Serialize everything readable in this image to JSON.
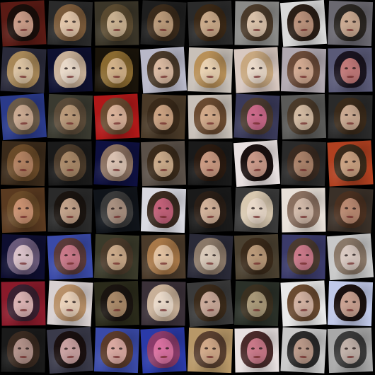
{
  "image": {
    "description_type": "grid of generated face samples",
    "rows": 8,
    "cols": 8,
    "background": "#000000",
    "tiles": [
      {
        "bg": "#5a1a14",
        "hair": "#1a0e0a",
        "skin": "#c79a86"
      },
      {
        "bg": "#2a2a2a",
        "hair": "#7a5a3a",
        "skin": "#e0c4a8"
      },
      {
        "bg": "#3a3528",
        "hair": "#5a4a30",
        "skin": "#c8b090"
      },
      {
        "bg": "#1e1e1e",
        "hair": "#3a2a1a",
        "skin": "#b89878"
      },
      {
        "bg": "#2a2a2a",
        "hair": "#3a2816",
        "skin": "#c8a888"
      },
      {
        "bg": "#8a8a88",
        "hair": "#4a3a2a",
        "skin": "#d8c0a8"
      },
      {
        "bg": "#d8d8d8",
        "hair": "#2a1e16",
        "skin": "#b8907a"
      },
      {
        "bg": "#6a6870",
        "hair": "#2a2622",
        "skin": "#c8a890"
      },
      {
        "bg": "#2a2a3a",
        "hair": "#a88858",
        "skin": "#d8c0a0"
      },
      {
        "bg": "#0e1030",
        "hair": "#c8b098",
        "skin": "#e8d8c8"
      },
      {
        "bg": "#1a140a",
        "hair": "#8a6a30",
        "skin": "#d0b088"
      },
      {
        "bg": "#b8b8c8",
        "hair": "#4a3a2a",
        "skin": "#d8b8a0"
      },
      {
        "bg": "#c8c0b8",
        "hair": "#b89058",
        "skin": "#e8d0b0"
      },
      {
        "bg": "#d8c8c0",
        "hair": "#c8a880",
        "skin": "#e8d8c8"
      },
      {
        "bg": "#b0a8b0",
        "hair": "#6a4a38",
        "skin": "#d0a890"
      },
      {
        "bg": "#5a5a78",
        "hair": "#1a1420",
        "skin": "#c07878"
      },
      {
        "bg": "#2a3a8a",
        "hair": "#6a5a48",
        "skin": "#c8a890"
      },
      {
        "bg": "#3a3a30",
        "hair": "#5a4a38",
        "skin": "#b89878"
      },
      {
        "bg": "#b01818",
        "hair": "#6a4a30",
        "skin": "#d8b098"
      },
      {
        "bg": "#4a3a28",
        "hair": "#3a2a1a",
        "skin": "#c8a080"
      },
      {
        "bg": "#c8c0b8",
        "hair": "#6a4a30",
        "skin": "#d0a888"
      },
      {
        "bg": "#3a3a5a",
        "hair": "#4a3a30",
        "skin": "#c86888"
      },
      {
        "bg": "#5a5a58",
        "hair": "#4a3a2a",
        "skin": "#d0b8a0"
      },
      {
        "bg": "#2a2a2a",
        "hair": "#3a2a1a",
        "skin": "#c8a890"
      },
      {
        "bg": "#3a2a1a",
        "hair": "#6a4a28",
        "skin": "#b08060"
      },
      {
        "bg": "#1a1a1a",
        "hair": "#4a3a2a",
        "skin": "#a88868"
      },
      {
        "bg": "#0e1040",
        "hair": "#8a7060",
        "skin": "#d8c0b0"
      },
      {
        "bg": "#5a5048",
        "hair": "#3a2a1a",
        "skin": "#c8a888"
      },
      {
        "bg": "#1a1a1a",
        "hair": "#2a1a10",
        "skin": "#c89880"
      },
      {
        "bg": "#e8e0e0",
        "hair": "#1a1010",
        "skin": "#c89888"
      },
      {
        "bg": "#2a2a2a",
        "hair": "#3a2a20",
        "skin": "#a88068"
      },
      {
        "bg": "#b04020",
        "hair": "#3a2a1a",
        "skin": "#c8a080"
      },
      {
        "bg": "#5a3a20",
        "hair": "#6a4a28",
        "skin": "#c89070"
      },
      {
        "bg": "#2a2a2a",
        "hair": "#1a1410",
        "skin": "#c0a088"
      },
      {
        "bg": "#10141a",
        "hair": "#3a3a3a",
        "skin": "#a89080"
      },
      {
        "bg": "#d8d8e0",
        "hair": "#3a2a20",
        "skin": "#c06078"
      },
      {
        "bg": "#1a1a1a",
        "hair": "#2a1e16",
        "skin": "#d0b098"
      },
      {
        "bg": "#3a3a3a",
        "hair": "#d8c8b0",
        "skin": "#e8d8c8"
      },
      {
        "bg": "#e8e0d8",
        "hair": "#8a7060",
        "skin": "#d0b8a8"
      },
      {
        "bg": "#3a3028",
        "hair": "#4a3020",
        "skin": "#b88870"
      },
      {
        "bg": "#0e0e30",
        "hair": "#6a5a7a",
        "skin": "#d8c0c8"
      },
      {
        "bg": "#3a4aa8",
        "hair": "#5a3a3a",
        "skin": "#c87888"
      },
      {
        "bg": "#3a3a2a",
        "hair": "#4a3a2a",
        "skin": "#c8a888"
      },
      {
        "bg": "#4a3a2a",
        "hair": "#a87848",
        "skin": "#e0c0a0"
      },
      {
        "bg": "#2a2a38",
        "hair": "#8a7868",
        "skin": "#d8c8b8"
      },
      {
        "bg": "#4a4030",
        "hair": "#3a2a1a",
        "skin": "#b89878"
      },
      {
        "bg": "#3a3a6a",
        "hair": "#4a3a30",
        "skin": "#c87888"
      },
      {
        "bg": "#c8c8c8",
        "hair": "#8a7868",
        "skin": "#d8c8c0"
      },
      {
        "bg": "#8a1a2a",
        "hair": "#3a2030",
        "skin": "#d8b0b0"
      },
      {
        "bg": "#d8d0d0",
        "hair": "#b89068",
        "skin": "#e8d0b8"
      },
      {
        "bg": "#2a2a1a",
        "hair": "#1a1410",
        "skin": "#a88868"
      },
      {
        "bg": "#3a3038",
        "hair": "#c8b098",
        "skin": "#e8d8c8"
      },
      {
        "bg": "#3a3a3a",
        "hair": "#3a2a1a",
        "skin": "#c8a898"
      },
      {
        "bg": "#2a3028",
        "hair": "#3a3020",
        "skin": "#a89878"
      },
      {
        "bg": "#e8e8e8",
        "hair": "#6a4a30",
        "skin": "#d0b0a0"
      },
      {
        "bg": "#c0c8e8",
        "hair": "#1a1010",
        "skin": "#c8a090"
      },
      {
        "bg": "#1a1a1a",
        "hair": "#3a2a20",
        "skin": "#b09088"
      },
      {
        "bg": "#3a3a4a",
        "hair": "#1a1010",
        "skin": "#c8a0a0"
      },
      {
        "bg": "#3a4aa8",
        "hair": "#5a3a2a",
        "skin": "#d8a8a0"
      },
      {
        "bg": "#2a3aa8",
        "hair": "#8a3a6a",
        "skin": "#d870a0"
      },
      {
        "bg": "#b89868",
        "hair": "#5a4030",
        "skin": "#d0a888"
      },
      {
        "bg": "#e8e0e0",
        "hair": "#4a2a2a",
        "skin": "#c87888"
      },
      {
        "bg": "#c8c8c8",
        "hair": "#2a2a2a",
        "skin": "#b89888"
      },
      {
        "bg": "#a8a8a8",
        "hair": "#3a3a3a",
        "skin": "#c0b0a8"
      }
    ]
  }
}
